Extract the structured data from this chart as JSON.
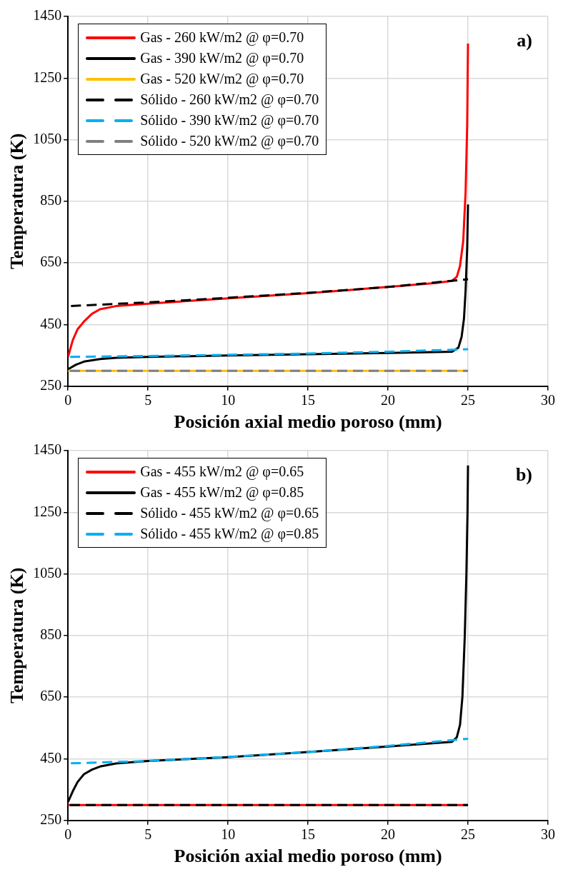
{
  "chart_data": [
    {
      "type": "line",
      "xlabel": "Posición axial medio poroso (mm)",
      "ylabel": "Temperatura (K)",
      "annotations": [
        "a)"
      ],
      "xlim": [
        0,
        30
      ],
      "xticks": [
        0,
        5,
        10,
        15,
        20,
        25,
        30
      ],
      "ylim": [
        250,
        1450
      ],
      "yticks": [
        250,
        450,
        650,
        850,
        1050,
        1250,
        1450
      ],
      "grid": true,
      "legend": "top left",
      "marker": "none",
      "series": [
        {
          "name": "Gas - 260 kW/m2 @ φ=0.70",
          "color": "#ff0000",
          "line_style": "solid",
          "x": [
            0,
            0.3,
            0.6,
            1,
            1.5,
            2,
            3,
            5,
            10,
            15,
            20,
            23,
            24,
            24.3,
            24.5,
            24.7,
            24.85,
            24.95,
            25
          ],
          "values": [
            345,
            400,
            435,
            460,
            485,
            500,
            510,
            518,
            535,
            552,
            572,
            585,
            592,
            605,
            640,
            720,
            880,
            1100,
            1362
          ]
        },
        {
          "name": "Gas - 390 kW/m2 @ φ=0.70",
          "color": "#000000",
          "line_style": "solid",
          "x": [
            0,
            0.5,
            1,
            2,
            3,
            5,
            10,
            15,
            20,
            24,
            24.4,
            24.6,
            24.75,
            24.85,
            24.95,
            25
          ],
          "values": [
            305,
            320,
            330,
            338,
            342,
            345,
            350,
            354,
            358,
            362,
            375,
            410,
            470,
            560,
            700,
            840
          ]
        },
        {
          "name": "Gas - 520 kW/m2 @ φ=0.70",
          "color": "#ffc000",
          "line_style": "solid",
          "x": [
            0,
            25
          ],
          "values": [
            300,
            300
          ]
        },
        {
          "name": "Sólido - 260 kW/m2 @ φ=0.70",
          "color": "#000000",
          "line_style": "dashed",
          "x": [
            0,
            5,
            10,
            15,
            20,
            25
          ],
          "values": [
            510,
            522,
            537,
            553,
            572,
            597
          ]
        },
        {
          "name": "Sólido - 390 kW/m2 @ φ=0.70",
          "color": "#00b0f0",
          "line_style": "dashed",
          "x": [
            0,
            5,
            10,
            15,
            20,
            25
          ],
          "values": [
            345,
            348,
            352,
            356,
            362,
            370
          ]
        },
        {
          "name": "Sólido - 520 kW/m2 @ φ=0.70",
          "color": "#808080",
          "line_style": "dashed",
          "x": [
            0,
            25
          ],
          "values": [
            300,
            300
          ]
        }
      ]
    },
    {
      "type": "line",
      "xlabel": "Posición axial medio poroso (mm)",
      "ylabel": "Temperatura (K)",
      "annotations": [
        "b)"
      ],
      "xlim": [
        0,
        30
      ],
      "xticks": [
        0,
        5,
        10,
        15,
        20,
        25,
        30
      ],
      "ylim": [
        250,
        1450
      ],
      "yticks": [
        250,
        450,
        650,
        850,
        1050,
        1250,
        1450
      ],
      "grid": true,
      "legend": "top left",
      "marker": "none",
      "series": [
        {
          "name": "Gas - 455 kW/m2 @ φ=0.65",
          "color": "#ff0000",
          "line_style": "solid",
          "x": [
            0,
            25
          ],
          "values": [
            300,
            300
          ]
        },
        {
          "name": "Gas - 455 kW/m2 @ φ=0.85",
          "color": "#000000",
          "line_style": "solid",
          "x": [
            0,
            0.3,
            0.6,
            1,
            1.5,
            2,
            3,
            5,
            10,
            15,
            20,
            24,
            24.3,
            24.5,
            24.65,
            24.8,
            24.9,
            24.97,
            25
          ],
          "values": [
            310,
            345,
            375,
            400,
            415,
            425,
            435,
            443,
            455,
            472,
            490,
            505,
            520,
            560,
            650,
            850,
            1050,
            1250,
            1402
          ]
        },
        {
          "name": "Sólido - 455 kW/m2 @ φ=0.65",
          "color": "#000000",
          "line_style": "dashed",
          "x": [
            0,
            25
          ],
          "values": [
            300,
            300
          ]
        },
        {
          "name": "Sólido - 455 kW/m2 @ φ=0.85",
          "color": "#00b0f0",
          "line_style": "dashed",
          "x": [
            0,
            5,
            10,
            15,
            20,
            25
          ],
          "values": [
            435,
            443,
            456,
            472,
            492,
            515
          ]
        }
      ]
    }
  ]
}
